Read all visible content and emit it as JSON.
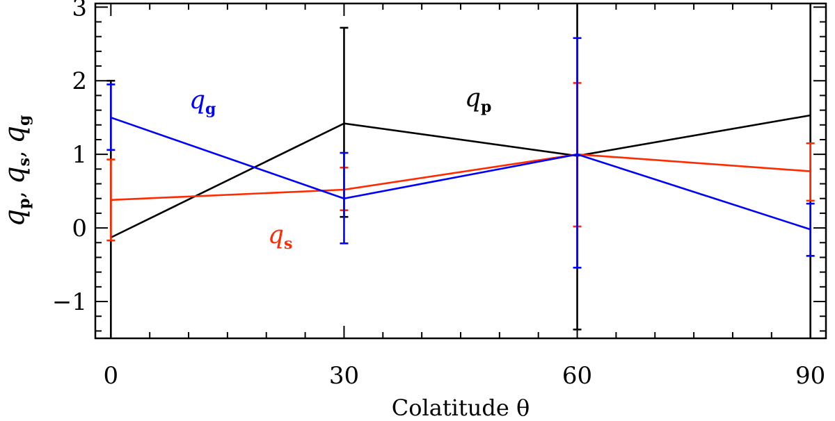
{
  "chart_data": {
    "type": "line",
    "x": [
      0,
      30,
      60,
      90
    ],
    "xlabel": "Colatitude θ",
    "ylabel": "q_p, q_s, q_g",
    "xlim": [
      -2,
      92
    ],
    "ylim": [
      -1.5,
      3.05
    ],
    "xticks": [
      0,
      30,
      60,
      90
    ],
    "xtick_labels": [
      "0",
      "30",
      "60",
      "90"
    ],
    "yticks": [
      -1,
      0,
      1,
      2,
      3
    ],
    "ytick_labels": [
      "−1",
      "0",
      "1",
      "2",
      "3"
    ],
    "grid": false,
    "series": [
      {
        "name": "q_p",
        "label_main": "q",
        "label_sub": "p",
        "color": "#000000",
        "values": [
          -0.13,
          1.42,
          0.98,
          1.53
        ],
        "err_low": [
          -1.5,
          0.15,
          -1.38,
          -1.5
        ],
        "err_high": [
          2.0,
          2.72,
          3.05,
          3.05
        ]
      },
      {
        "name": "q_s",
        "label_main": "q",
        "label_sub": "s",
        "color": "#ff2a00",
        "values": [
          0.38,
          0.52,
          1.0,
          0.77
        ],
        "err_low": [
          -0.17,
          0.24,
          0.02,
          0.37
        ],
        "err_high": [
          0.93,
          0.82,
          1.97,
          1.15
        ]
      },
      {
        "name": "q_g",
        "label_main": "q",
        "label_sub": "g",
        "color": "#0000ff",
        "values": [
          1.5,
          0.4,
          1.0,
          -0.02
        ],
        "err_low": [
          1.06,
          -0.21,
          -0.54,
          -0.38
        ],
        "err_high": [
          1.95,
          1.02,
          2.58,
          0.33
        ]
      }
    ]
  }
}
